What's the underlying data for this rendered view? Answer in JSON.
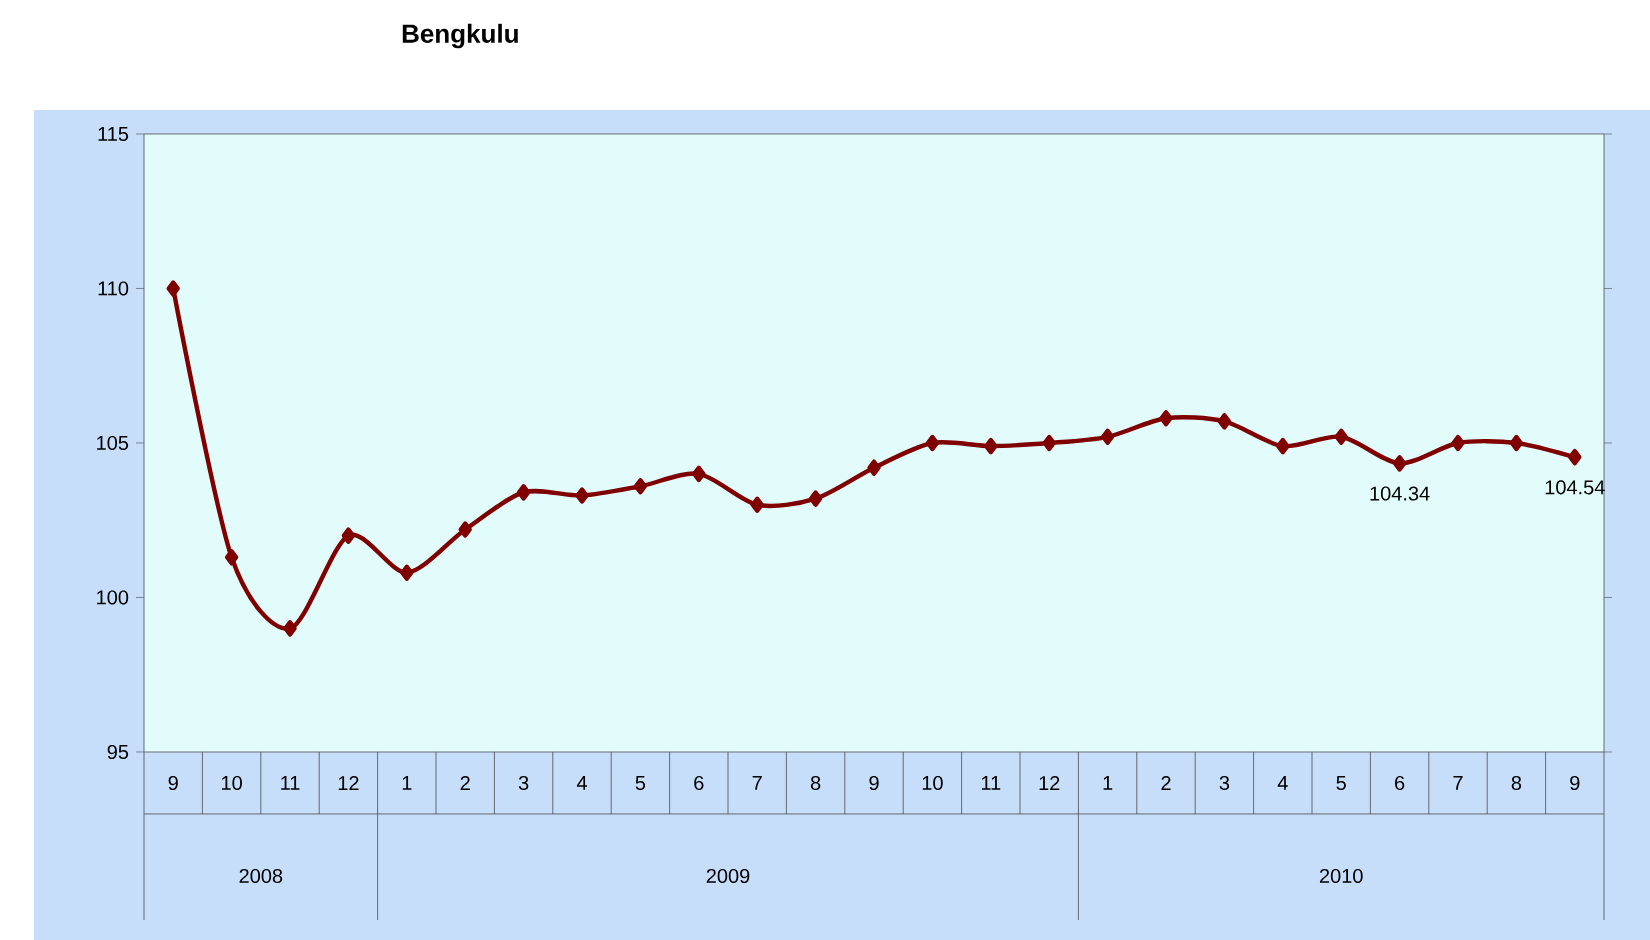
{
  "chart_data": {
    "type": "line",
    "title": "Bengkulu",
    "categories": [
      "9",
      "10",
      "11",
      "12",
      "1",
      "2",
      "3",
      "4",
      "5",
      "6",
      "7",
      "8",
      "9",
      "10",
      "11",
      "12",
      "1",
      "2",
      "3",
      "4",
      "5",
      "6",
      "7",
      "8",
      "9"
    ],
    "annotations": [
      "2008",
      "2009",
      "2010"
    ],
    "series": [
      {
        "color": "#800000",
        "values": [
          110.0,
          101.3,
          99.0,
          102.0,
          100.8,
          102.2,
          103.4,
          103.3,
          103.6,
          104.0,
          103.0,
          103.2,
          104.2,
          105.0,
          104.9,
          105.0,
          105.2,
          105.8,
          105.7,
          104.9,
          105.2,
          104.34,
          105.0,
          105.0,
          104.54
        ],
        "value_labels": [
          null,
          null,
          null,
          null,
          null,
          null,
          null,
          null,
          null,
          null,
          null,
          null,
          null,
          null,
          null,
          null,
          null,
          null,
          null,
          null,
          null,
          "104.34",
          null,
          null,
          "104.54"
        ]
      }
    ],
    "ylim": [
      95,
      115
    ],
    "yticks": [
      95,
      100,
      105,
      110,
      115
    ],
    "marker": "diamond",
    "line_style": "solid",
    "grid": false
  }
}
